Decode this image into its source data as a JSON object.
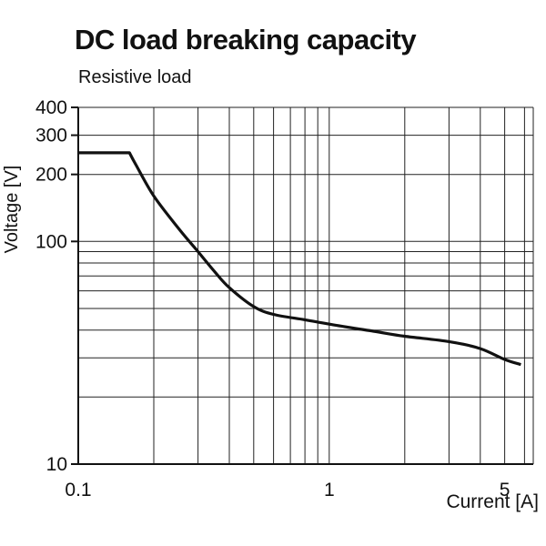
{
  "chart_data": {
    "type": "line",
    "title": "DC load breaking capacity",
    "subtitle": "Resistive load",
    "xlabel": "Current [A]",
    "ylabel": "Voltage [V]",
    "x_scale": "log",
    "y_scale": "log",
    "xlim": [
      0.1,
      6.5
    ],
    "ylim": [
      10,
      400
    ],
    "grid": true,
    "x_ticks": [
      {
        "value": 0.1,
        "label": "0.1"
      },
      {
        "value": 1,
        "label": "1"
      },
      {
        "value": 5,
        "label": "5"
      }
    ],
    "y_ticks": [
      {
        "value": 10,
        "label": "10"
      },
      {
        "value": 100,
        "label": "100"
      },
      {
        "value": 200,
        "label": "200"
      },
      {
        "value": 300,
        "label": "300"
      },
      {
        "value": 400,
        "label": "400"
      }
    ],
    "x_grid": [
      0.2,
      0.3,
      0.4,
      0.5,
      0.6,
      0.7,
      0.8,
      0.9,
      1,
      2,
      3,
      4,
      5,
      6
    ],
    "y_grid": [
      20,
      30,
      40,
      50,
      60,
      70,
      80,
      90,
      100,
      200,
      300,
      400
    ],
    "series": [
      {
        "color": "#111111",
        "x": [
          0.1,
          0.16,
          0.17,
          0.2,
          0.25,
          0.3,
          0.35,
          0.4,
          0.5,
          0.6,
          0.8,
          1.0,
          1.5,
          2.0,
          3.0,
          4.0,
          5.0,
          5.8
        ],
        "y": [
          250,
          250,
          220,
          160,
          115,
          90,
          73,
          62,
          51,
          47,
          44.5,
          42.5,
          39.5,
          37.5,
          35.5,
          33,
          29.5,
          28
        ]
      }
    ]
  }
}
